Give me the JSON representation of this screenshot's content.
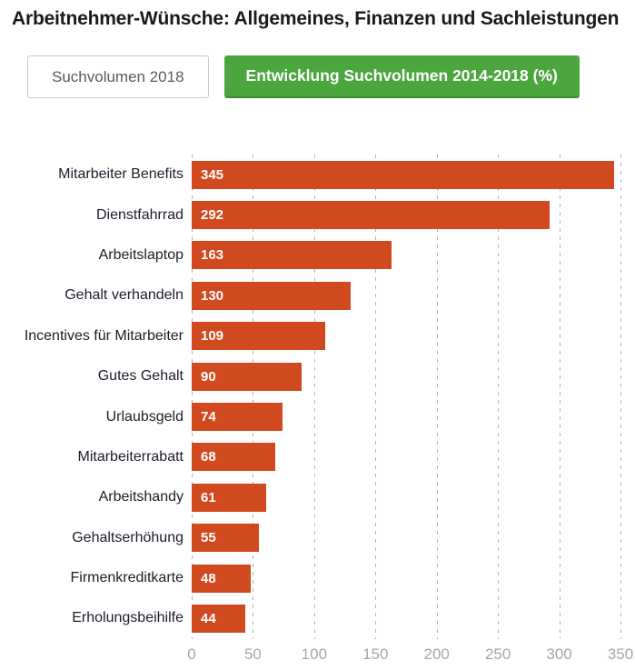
{
  "title": "Arbeitnehmer-Wünsche: Allgemeines, Finanzen und Sachleistungen",
  "buttons": {
    "inactive_label": "Suchvolumen 2018",
    "active_label": "Entwicklung Suchvolumen 2014-2018 (%)"
  },
  "colors": {
    "bar": "#d14a1f",
    "active_button": "#4ba63e",
    "grid": "#b4b4b4",
    "tick_label": "#a7a7a7"
  },
  "chart_data": {
    "type": "bar",
    "orientation": "horizontal",
    "title": "Entwicklung Suchvolumen 2014-2018 (%)",
    "categories": [
      "Mitarbeiter Benefits",
      "Dienstfahrrad",
      "Arbeitslaptop",
      "Gehalt verhandeln",
      "Incentives für Mitarbeiter",
      "Gutes Gehalt",
      "Urlaubsgeld",
      "Mitarbeiterrabatt",
      "Arbeitshandy",
      "Gehaltserhöhung",
      "Firmenkreditkarte",
      "Erholungsbeihilfe"
    ],
    "values": [
      345,
      292,
      163,
      130,
      109,
      90,
      74,
      68,
      61,
      55,
      48,
      44
    ],
    "xlabel": "",
    "ylabel": "",
    "xlim": [
      0,
      350
    ],
    "xticks": [
      0,
      50,
      100,
      150,
      200,
      250,
      300,
      350
    ],
    "grid": true,
    "grid_style": "dashed-vertical",
    "value_labels": "inside-left",
    "bar_color": "#d14a1f",
    "legend": false
  }
}
